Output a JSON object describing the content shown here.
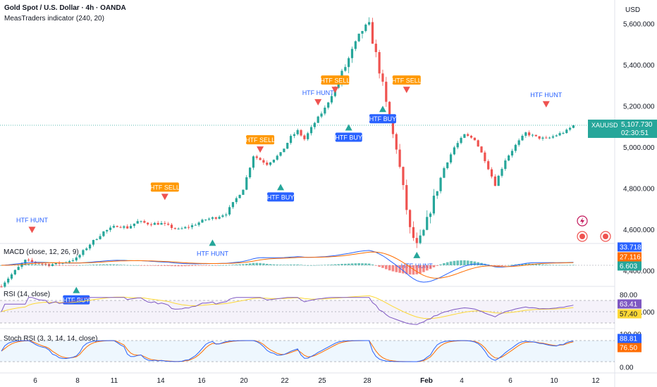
{
  "header": {
    "title": "Gold Spot / U.S. Dollar · 4h · OANDA",
    "indicator": "MeasTraders indicator (240, 20)",
    "currency": "USD"
  },
  "chart_data": {
    "type": "candlestick",
    "symbol": "XAUUSD",
    "last_price": "5,107.730",
    "countdown": "02:30:51",
    "ylim": [
      4150,
      5680
    ],
    "y_ticks": [
      "5,600.000",
      "5,400.000",
      "5,200.000",
      "5,000.000",
      "4,800.000",
      "4,600.000",
      "4,400.000",
      "4,200.000"
    ],
    "y_tick_values": [
      5600,
      5400,
      5200,
      5000,
      4800,
      4600,
      4400,
      4200
    ],
    "x_ticks": [
      "6",
      "8",
      "11",
      "14",
      "16",
      "20",
      "22",
      "25",
      "28",
      "Feb",
      "4",
      "6",
      "10",
      "12"
    ],
    "price_path": [
      [
        0,
        4330
      ],
      [
        4,
        4400
      ],
      [
        7,
        4450
      ],
      [
        10,
        4440
      ],
      [
        14,
        4430
      ],
      [
        18,
        4440
      ],
      [
        22,
        4460
      ],
      [
        26,
        4530
      ],
      [
        30,
        4590
      ],
      [
        34,
        4620
      ],
      [
        37,
        4610
      ],
      [
        40,
        4640
      ],
      [
        43,
        4630
      ],
      [
        47,
        4630
      ],
      [
        52,
        4600
      ],
      [
        56,
        4620
      ],
      [
        60,
        4650
      ],
      [
        63,
        4660
      ],
      [
        66,
        4680
      ],
      [
        71,
        4800
      ],
      [
        74,
        4960
      ],
      [
        78,
        4920
      ],
      [
        82,
        4970
      ],
      [
        85,
        5050
      ],
      [
        87,
        5080
      ],
      [
        89,
        5040
      ],
      [
        92,
        5120
      ],
      [
        95,
        5190
      ],
      [
        99,
        5320
      ],
      [
        102,
        5430
      ],
      [
        106,
        5570
      ],
      [
        108,
        5590
      ],
      [
        110,
        5450
      ],
      [
        112,
        5300
      ],
      [
        114,
        5120
      ],
      [
        116,
        5000
      ],
      [
        118,
        4800
      ],
      [
        120,
        4600
      ],
      [
        122,
        4520
      ],
      [
        124,
        4590
      ],
      [
        127,
        4750
      ],
      [
        130,
        4900
      ],
      [
        133,
        5000
      ],
      [
        136,
        5060
      ],
      [
        139,
        5040
      ],
      [
        142,
        4940
      ],
      [
        145,
        4820
      ],
      [
        148,
        4940
      ],
      [
        151,
        5010
      ],
      [
        154,
        5070
      ],
      [
        157,
        5050
      ],
      [
        160,
        5040
      ],
      [
        163,
        5060
      ],
      [
        166,
        5080
      ],
      [
        168,
        5107
      ]
    ],
    "signals": [
      {
        "label": "HTF HUNT",
        "type": "sell",
        "price": 4560
      },
      {
        "label": "HTF BUY",
        "type": "buy",
        "price": 4350
      },
      {
        "label": "HTF SELL",
        "type": "sell",
        "price": 4720
      },
      {
        "label": "HTF HUNT",
        "type": "buy",
        "price": 4580
      },
      {
        "label": "HTF SELL",
        "type": "sell",
        "price": 4950
      },
      {
        "label": "HTF BUY",
        "type": "buy",
        "price": 4850
      },
      {
        "label": "HTF HUNT",
        "type": "sell",
        "price": 5180
      },
      {
        "label": "HTF SELL",
        "type": "sell",
        "price": 5240
      },
      {
        "label": "HTF BUY",
        "type": "buy",
        "price": 5140
      },
      {
        "label": "HTF BUY",
        "type": "buy",
        "price": 5230
      },
      {
        "label": "HTF SELL",
        "type": "sell",
        "price": 5240
      },
      {
        "label": "HTF HUNT",
        "type": "buy",
        "price": 4520
      },
      {
        "label": "HTF HUNT",
        "type": "sell",
        "price": 5170
      }
    ],
    "macd": {
      "label": "MACD (close, 12, 26, 9)",
      "values": [
        "33.718",
        "27.116",
        "6.603"
      ],
      "colors": [
        "#2962ff",
        "#ff6d00",
        "#26a69a"
      ]
    },
    "rsi": {
      "label": "RSI (14, close)",
      "levels": [
        "80.00",
        "63.41",
        "57.40"
      ],
      "colors": [
        "#ffffff",
        "#7e57c2",
        "#fdd835"
      ]
    },
    "stoch_rsi": {
      "label": "Stoch RSI (3, 3, 14, 14, close)",
      "levels": [
        "100.00",
        "88.81",
        "76.50",
        "0.00"
      ],
      "colors": [
        "#ffffff",
        "#2962ff",
        "#ff6d00",
        "#ffffff"
      ]
    }
  },
  "colors": {
    "up": "#26a69a",
    "down": "#ef5350",
    "buy_label": "#2962ff",
    "sell_label": "#ff9800",
    "hunt_text": "#2962ff"
  }
}
